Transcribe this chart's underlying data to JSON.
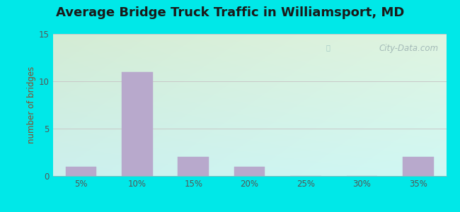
{
  "title": "Average Bridge Truck Traffic in Williamsport, MD",
  "categories": [
    "5%",
    "10%",
    "15%",
    "20%",
    "25%",
    "30%",
    "35%"
  ],
  "values": [
    1,
    11,
    2,
    1,
    0,
    0,
    2
  ],
  "bar_color": "#b8a9cc",
  "bar_edge_color": "#b8a9cc",
  "ylabel": "number of bridges",
  "ylim": [
    0,
    15
  ],
  "yticks": [
    0,
    5,
    10,
    15
  ],
  "background_outer": "#00e8e8",
  "background_inner_topleft": "#d4ecd4",
  "background_inner_bottomright": "#d0f0ee",
  "title_fontsize": 13,
  "axis_label_color": "#8b4a2a",
  "tick_label_color": "#555555",
  "watermark_text": "City-Data.com",
  "grid_color": "#c8c8c8",
  "title_color": "#1a1a1a"
}
